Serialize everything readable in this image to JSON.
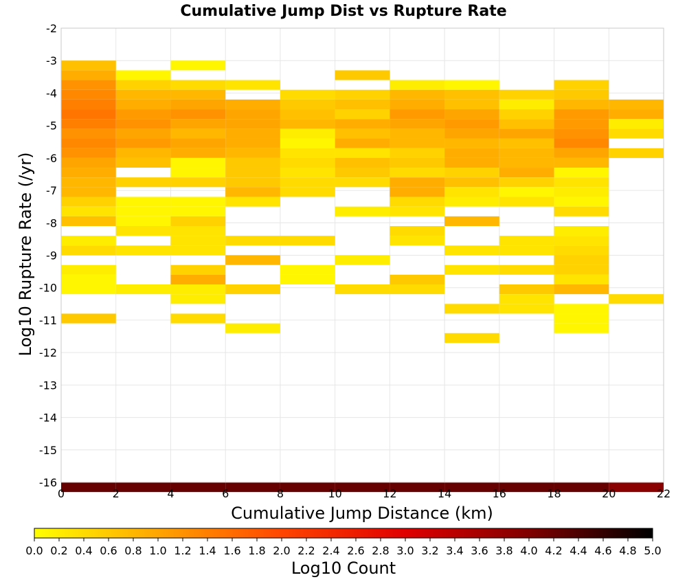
{
  "chart_data": {
    "type": "heatmap",
    "title": "Cumulative Jump Dist vs Rupture Rate",
    "xlabel": "Cumulative Jump Distance (km)",
    "ylabel": "Log10 Rupture Rate (/yr)",
    "xlim": [
      0,
      22
    ],
    "ylim": [
      -16,
      -2
    ],
    "x_ticks": [
      0,
      2,
      4,
      6,
      8,
      10,
      12,
      14,
      16,
      18,
      20,
      22
    ],
    "y_ticks": [
      -2,
      -3,
      -4,
      -5,
      -6,
      -7,
      -8,
      -9,
      -10,
      -11,
      -12,
      -13,
      -14,
      -15,
      -16
    ],
    "bin_width_x": 2,
    "bin_height_y": 0.3,
    "grid": true,
    "colorbar": {
      "label": "Log10 Count",
      "min": 0.0,
      "max": 5.0,
      "ticks": [
        "0.0",
        "0.2",
        "0.4",
        "0.6",
        "0.8",
        "1.0",
        "1.2",
        "1.4",
        "1.6",
        "1.8",
        "2.0",
        "2.2",
        "2.4",
        "2.6",
        "2.8",
        "3.0",
        "3.2",
        "3.4",
        "3.6",
        "3.8",
        "4.0",
        "4.2",
        "4.4",
        "4.6",
        "4.8",
        "5.0"
      ],
      "colors": [
        "#ffff00",
        "#ffa500",
        "#ff4500",
        "#e00000",
        "#800000",
        "#000000"
      ]
    },
    "columns": [
      {
        "x_start": 0,
        "cells": [
          [
            -3.0,
            0.7
          ],
          [
            -3.3,
            0.9
          ],
          [
            -3.6,
            1.2
          ],
          [
            -3.9,
            1.3
          ],
          [
            -4.2,
            1.4
          ],
          [
            -4.5,
            1.5
          ],
          [
            -4.8,
            1.4
          ],
          [
            -5.1,
            1.2
          ],
          [
            -5.4,
            1.3
          ],
          [
            -5.7,
            1.2
          ],
          [
            -6.0,
            1.0
          ],
          [
            -6.3,
            0.9
          ],
          [
            -6.6,
            0.8
          ],
          [
            -6.9,
            0.8
          ],
          [
            -7.2,
            0.5
          ],
          [
            -7.5,
            0.3
          ],
          [
            -7.8,
            0.7
          ],
          [
            -8.4,
            0.2
          ],
          [
            -8.7,
            0.4
          ],
          [
            -9.3,
            0.2
          ],
          [
            -9.6,
            0.1
          ],
          [
            -9.9,
            0.1
          ],
          [
            -10.8,
            0.6
          ],
          [
            -16.0,
            4.2
          ]
        ]
      },
      {
        "x_start": 2,
        "cells": [
          [
            -3.3,
            0.1
          ],
          [
            -3.6,
            0.5
          ],
          [
            -3.9,
            0.8
          ],
          [
            -4.2,
            0.9
          ],
          [
            -4.5,
            1.1
          ],
          [
            -4.8,
            1.2
          ],
          [
            -5.1,
            1.0
          ],
          [
            -5.4,
            1.1
          ],
          [
            -5.7,
            0.8
          ],
          [
            -6.0,
            0.7
          ],
          [
            -6.6,
            0.5
          ],
          [
            -7.2,
            0.1
          ],
          [
            -7.5,
            0.1
          ],
          [
            -7.8,
            0.1
          ],
          [
            -8.1,
            0.3
          ],
          [
            -8.7,
            0.3
          ],
          [
            -9.9,
            0.2
          ],
          [
            -16.0,
            4.2
          ]
        ]
      },
      {
        "x_start": 4,
        "cells": [
          [
            -3.0,
            0.1
          ],
          [
            -3.6,
            0.4
          ],
          [
            -3.9,
            0.8
          ],
          [
            -4.2,
            1.0
          ],
          [
            -4.5,
            1.2
          ],
          [
            -4.8,
            1.0
          ],
          [
            -5.1,
            0.8
          ],
          [
            -5.4,
            1.0
          ],
          [
            -5.7,
            0.9
          ],
          [
            -6.0,
            0.1
          ],
          [
            -6.3,
            0.1
          ],
          [
            -6.6,
            0.5
          ],
          [
            -7.2,
            0.1
          ],
          [
            -7.5,
            0.1
          ],
          [
            -7.8,
            0.5
          ],
          [
            -8.1,
            0.3
          ],
          [
            -8.4,
            0.3
          ],
          [
            -8.7,
            0.3
          ],
          [
            -9.3,
            0.5
          ],
          [
            -9.6,
            0.9
          ],
          [
            -9.9,
            0.2
          ],
          [
            -10.2,
            0.2
          ],
          [
            -10.8,
            0.4
          ],
          [
            -16.0,
            4.2
          ]
        ]
      },
      {
        "x_start": 6,
        "cells": [
          [
            -3.6,
            0.3
          ],
          [
            -4.2,
            0.9
          ],
          [
            -4.5,
            1.0
          ],
          [
            -4.8,
            1.0
          ],
          [
            -5.1,
            0.9
          ],
          [
            -5.4,
            0.9
          ],
          [
            -5.7,
            0.8
          ],
          [
            -6.0,
            0.6
          ],
          [
            -6.3,
            0.6
          ],
          [
            -6.6,
            0.6
          ],
          [
            -6.9,
            0.8
          ],
          [
            -7.2,
            0.3
          ],
          [
            -8.4,
            0.4
          ],
          [
            -9.0,
            0.8
          ],
          [
            -9.9,
            0.5
          ],
          [
            -11.1,
            0.2
          ],
          [
            -16.0,
            4.2
          ]
        ]
      },
      {
        "x_start": 8,
        "cells": [
          [
            -3.9,
            0.4
          ],
          [
            -4.2,
            0.6
          ],
          [
            -4.5,
            0.7
          ],
          [
            -4.8,
            0.8
          ],
          [
            -5.1,
            0.2
          ],
          [
            -5.4,
            0.1
          ],
          [
            -5.7,
            0.3
          ],
          [
            -6.0,
            0.4
          ],
          [
            -6.3,
            0.3
          ],
          [
            -6.6,
            0.4
          ],
          [
            -6.9,
            0.4
          ],
          [
            -8.4,
            0.4
          ],
          [
            -9.3,
            0.1
          ],
          [
            -9.6,
            0.1
          ],
          [
            -16.0,
            4.2
          ]
        ]
      },
      {
        "x_start": 10,
        "cells": [
          [
            -3.3,
            0.6
          ],
          [
            -3.9,
            0.5
          ],
          [
            -4.2,
            0.7
          ],
          [
            -4.5,
            0.5
          ],
          [
            -4.8,
            0.9
          ],
          [
            -5.1,
            0.7
          ],
          [
            -5.4,
            0.9
          ],
          [
            -5.7,
            0.3
          ],
          [
            -6.0,
            0.7
          ],
          [
            -6.3,
            0.6
          ],
          [
            -6.6,
            0.4
          ],
          [
            -7.5,
            0.2
          ],
          [
            -9.0,
            0.2
          ],
          [
            -9.9,
            0.4
          ],
          [
            -16.0,
            4.2
          ]
        ]
      },
      {
        "x_start": 12,
        "cells": [
          [
            -3.6,
            0.2
          ],
          [
            -3.9,
            0.8
          ],
          [
            -4.2,
            0.9
          ],
          [
            -4.5,
            1.1
          ],
          [
            -4.8,
            1.0
          ],
          [
            -5.1,
            0.8
          ],
          [
            -5.4,
            0.8
          ],
          [
            -5.7,
            0.5
          ],
          [
            -6.0,
            0.6
          ],
          [
            -6.3,
            0.4
          ],
          [
            -6.6,
            0.9
          ],
          [
            -6.9,
            0.9
          ],
          [
            -7.2,
            0.4
          ],
          [
            -7.5,
            0.3
          ],
          [
            -8.1,
            0.4
          ],
          [
            -8.4,
            0.3
          ],
          [
            -9.6,
            0.6
          ],
          [
            -9.9,
            0.4
          ],
          [
            -16.0,
            4.2
          ]
        ]
      },
      {
        "x_start": 14,
        "cells": [
          [
            -3.6,
            0.1
          ],
          [
            -3.9,
            0.7
          ],
          [
            -4.2,
            0.7
          ],
          [
            -4.5,
            1.0
          ],
          [
            -4.8,
            1.1
          ],
          [
            -5.1,
            1.0
          ],
          [
            -5.4,
            0.8
          ],
          [
            -5.7,
            0.9
          ],
          [
            -6.0,
            0.9
          ],
          [
            -6.3,
            0.5
          ],
          [
            -6.6,
            0.7
          ],
          [
            -6.9,
            0.3
          ],
          [
            -7.2,
            0.2
          ],
          [
            -7.8,
            0.8
          ],
          [
            -8.7,
            0.3
          ],
          [
            -9.3,
            0.3
          ],
          [
            -10.5,
            0.4
          ],
          [
            -11.4,
            0.4
          ],
          [
            -16.0,
            4.2
          ]
        ]
      },
      {
        "x_start": 16,
        "cells": [
          [
            -3.9,
            0.5
          ],
          [
            -4.2,
            0.2
          ],
          [
            -4.5,
            0.5
          ],
          [
            -4.8,
            0.7
          ],
          [
            -5.1,
            1.0
          ],
          [
            -5.4,
            0.7
          ],
          [
            -5.7,
            0.8
          ],
          [
            -6.0,
            0.8
          ],
          [
            -6.3,
            0.9
          ],
          [
            -6.6,
            0.5
          ],
          [
            -6.9,
            0.1
          ],
          [
            -7.2,
            0.3
          ],
          [
            -8.4,
            0.3
          ],
          [
            -8.7,
            0.3
          ],
          [
            -9.3,
            0.4
          ],
          [
            -9.9,
            0.6
          ],
          [
            -10.2,
            0.3
          ],
          [
            -10.5,
            0.3
          ],
          [
            -16.0,
            4.2
          ]
        ]
      },
      {
        "x_start": 18,
        "cells": [
          [
            -3.6,
            0.5
          ],
          [
            -3.9,
            0.6
          ],
          [
            -4.2,
            0.8
          ],
          [
            -4.5,
            1.1
          ],
          [
            -4.8,
            1.1
          ],
          [
            -5.1,
            1.2
          ],
          [
            -5.4,
            1.3
          ],
          [
            -5.7,
            1.0
          ],
          [
            -6.0,
            0.8
          ],
          [
            -6.3,
            0.1
          ],
          [
            -6.6,
            0.3
          ],
          [
            -6.9,
            0.2
          ],
          [
            -7.2,
            0.1
          ],
          [
            -7.5,
            0.4
          ],
          [
            -8.1,
            0.2
          ],
          [
            -8.4,
            0.3
          ],
          [
            -8.7,
            0.4
          ],
          [
            -9.0,
            0.5
          ],
          [
            -9.3,
            0.5
          ],
          [
            -9.6,
            0.3
          ],
          [
            -9.9,
            0.8
          ],
          [
            -10.5,
            0.1
          ],
          [
            -10.8,
            0.1
          ],
          [
            -11.1,
            0.1
          ],
          [
            -16.0,
            4.2
          ]
        ]
      },
      {
        "x_start": 20,
        "cells": [
          [
            -4.2,
            0.8
          ],
          [
            -4.5,
            0.9
          ],
          [
            -4.8,
            0.2
          ],
          [
            -5.1,
            0.4
          ],
          [
            -5.7,
            0.5
          ],
          [
            -10.2,
            0.4
          ],
          [
            -16.0,
            3.9
          ]
        ]
      }
    ]
  }
}
